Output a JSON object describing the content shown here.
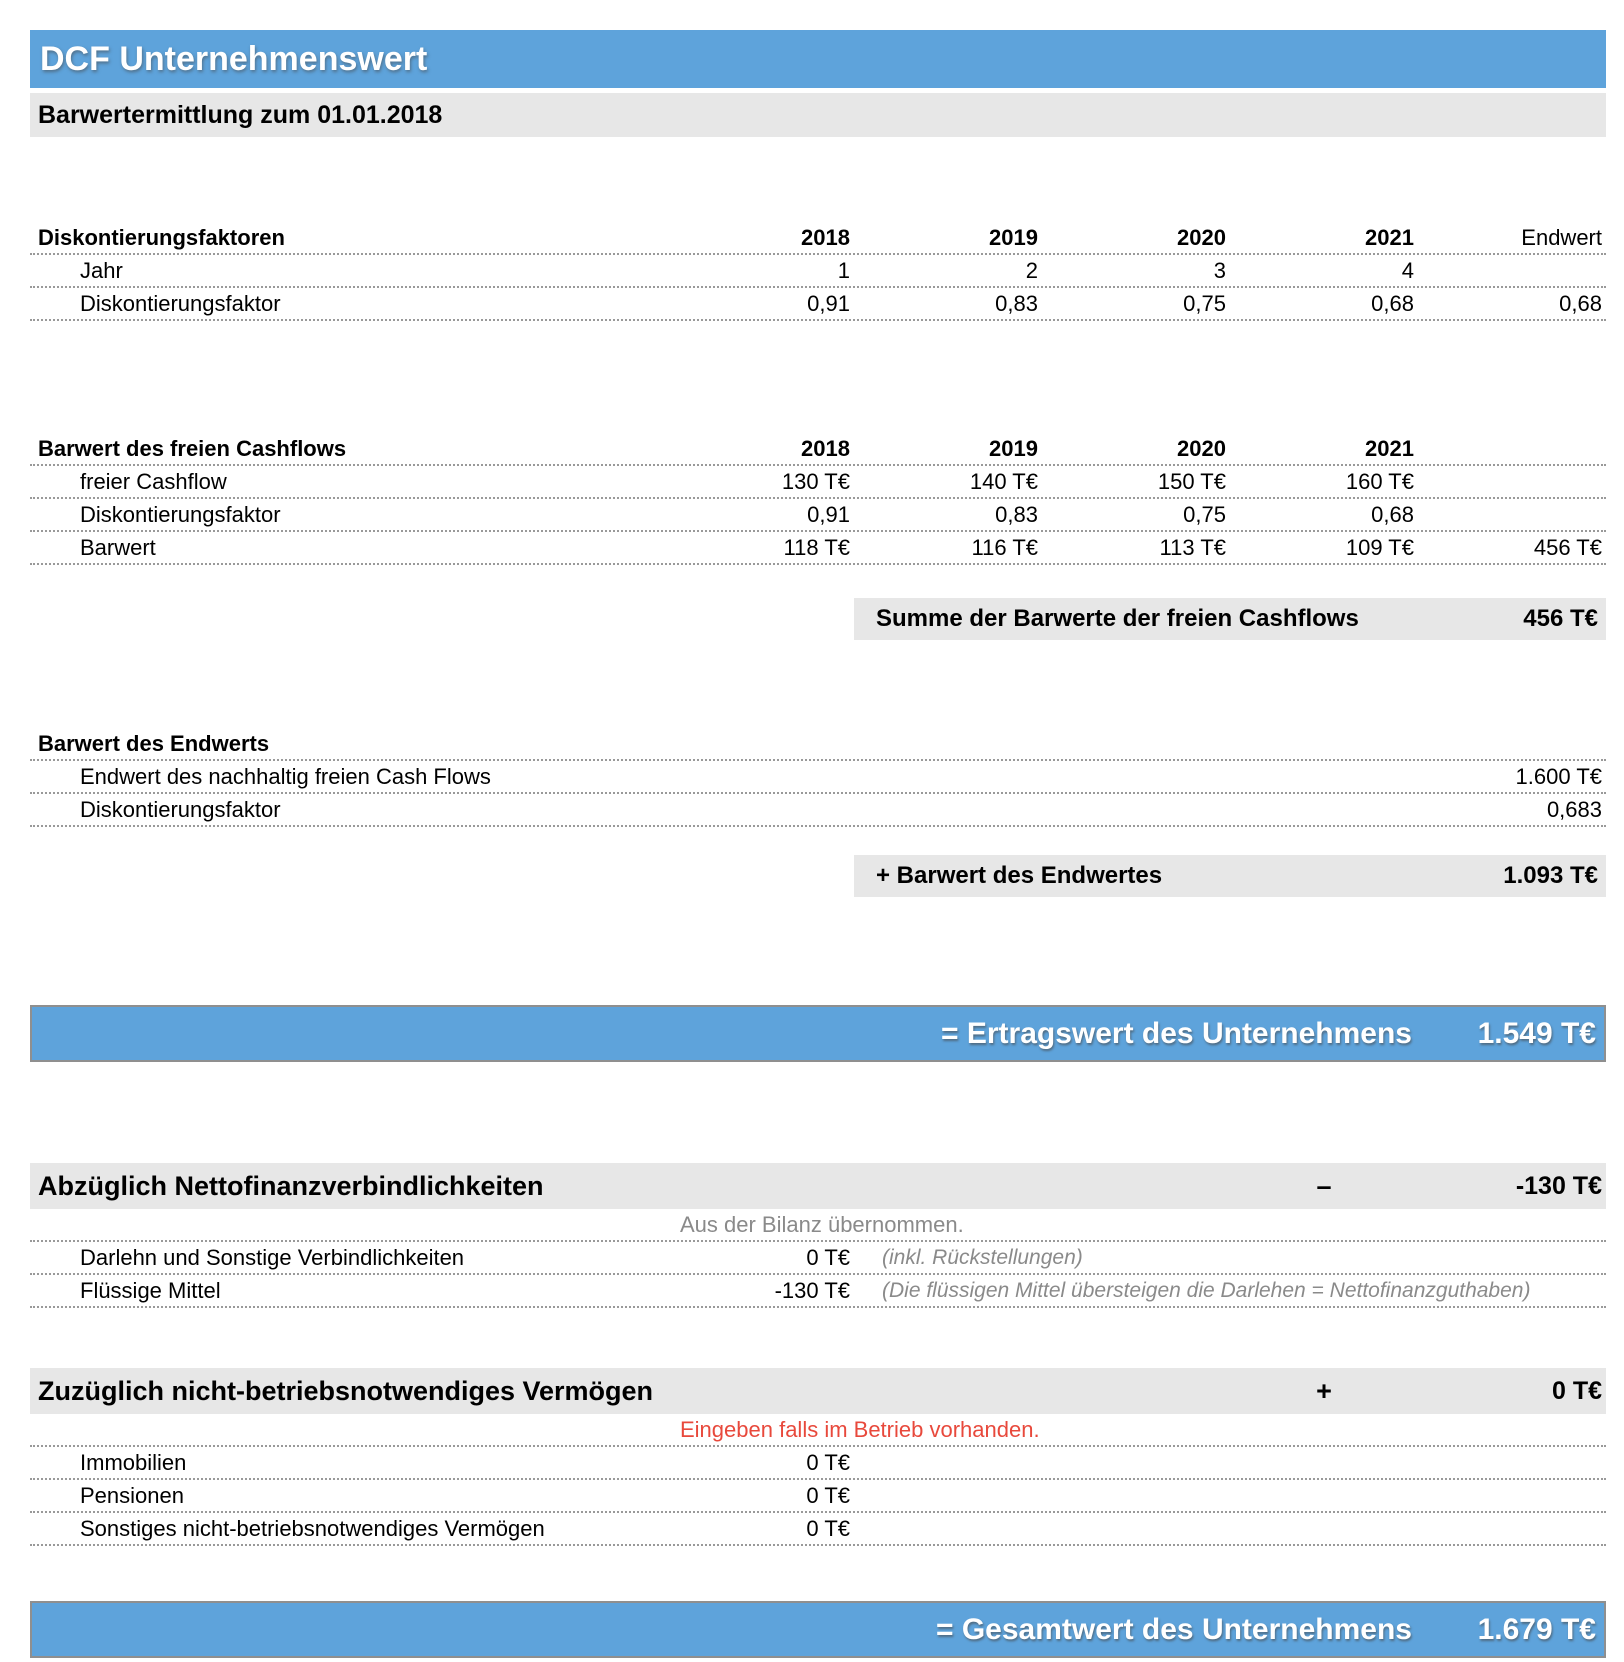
{
  "title_bar": {
    "title": "DCF Unternehmenswert"
  },
  "subtitle_bar": {
    "subtitle": "Barwertermittlung zum 01.01.2018"
  },
  "discount_factors": {
    "title": "Diskontierungsfaktoren",
    "columns": {
      "c1": "2018",
      "c2": "2019",
      "c3": "2020",
      "c4": "2021",
      "c5": "Endwert"
    },
    "jahr": {
      "label": "Jahr",
      "v1": "1",
      "v2": "2",
      "v3": "3",
      "v4": "4",
      "v5": ""
    },
    "faktor": {
      "label": "Diskontierungsfaktor",
      "v1": "0,91",
      "v2": "0,83",
      "v3": "0,75",
      "v4": "0,68",
      "v5": "0,68"
    }
  },
  "fcf_table": {
    "title": "Barwert des freien Cashflows",
    "columns": {
      "c1": "2018",
      "c2": "2019",
      "c3": "2020",
      "c4": "2021",
      "c5": ""
    },
    "cashflow": {
      "label": "freier Cashflow",
      "v1": "130 T€",
      "v2": "140 T€",
      "v3": "150 T€",
      "v4": "160 T€",
      "v5": ""
    },
    "faktor": {
      "label": "Diskontierungsfaktor",
      "v1": "0,91",
      "v2": "0,83",
      "v3": "0,75",
      "v4": "0,68",
      "v5": ""
    },
    "barwert": {
      "label": "Barwert",
      "v1": "118 T€",
      "v2": "116 T€",
      "v3": "113 T€",
      "v4": "109 T€",
      "v5": "456 T€"
    },
    "summe": {
      "label": "Summe der Barwerte der freien Cashflows",
      "value": "456 T€"
    }
  },
  "endwert_table": {
    "title": "Barwert des Endwerts",
    "endwert_row": {
      "label": "Endwert des nachhaltig freien Cash Flows",
      "value": "1.600 T€"
    },
    "faktor_row": {
      "label": "Diskontierungsfaktor",
      "value": "0,683"
    },
    "summe": {
      "label": "+ Barwert des Endwertes",
      "value": "1.093 T€"
    }
  },
  "ertragswert_bar": {
    "label": "= Ertragswert des Unternehmens",
    "value": "1.549 T€"
  },
  "nettofinanz": {
    "title": "Abzüglich Nettofinanzverbindlichkeiten",
    "operator": "–",
    "total": "-130 T€",
    "hint": "Aus der Bilanz übernommen.",
    "darlehn": {
      "label": "Darlehn und Sonstige Verbindlichkeiten",
      "value": "0 T€",
      "note": "(inkl. Rückstellungen)"
    },
    "fluessig": {
      "label": "Flüssige Mittel",
      "value": "-130 T€",
      "note": "(Die flüssigen Mittel übersteigen die Darlehen = Nettofinanzguthaben)"
    }
  },
  "vermoegen": {
    "title": "Zuzüglich nicht-betriebsnotwendiges Vermögen",
    "operator": "+",
    "total": "0 T€",
    "hint": "Eingeben falls im Betrieb vorhanden.",
    "immobilien": {
      "label": "Immobilien",
      "value": "0 T€"
    },
    "pensionen": {
      "label": "Pensionen",
      "value": "0 T€"
    },
    "sonstiges": {
      "label": "Sonstiges nicht-betriebsnotwendiges Vermögen",
      "value": "0 T€"
    }
  },
  "gesamtwert_bar": {
    "label": "= Gesamtwert des Unternehmens",
    "value": "1.679 T€"
  },
  "colors": {
    "accent_blue": "#5EA3DB",
    "bar_gray": "#E7E7E7",
    "hint_red": "#E8493C",
    "note_gray": "#8A8A8A"
  }
}
